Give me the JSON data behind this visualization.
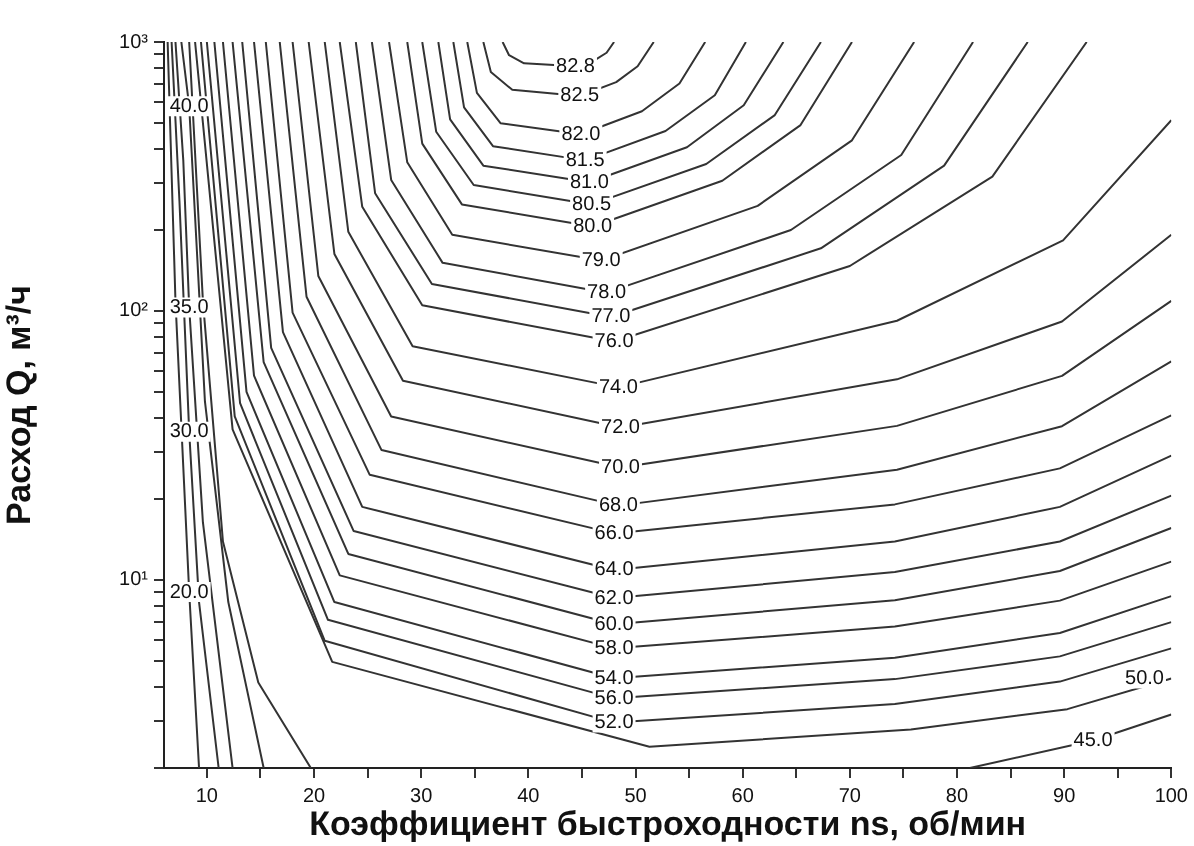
{
  "chart_data": {
    "type": "line",
    "xlabel": "Коэффициент быстроходности ns, об/мин",
    "ylabel": "Расход Q, м³/ч",
    "log": "y",
    "grid": false,
    "legend": false,
    "marker": "none",
    "line_style": "solid",
    "xlim": [
      6,
      100
    ],
    "ylim": [
      2,
      1000
    ],
    "xticks": [
      10,
      {
        "value": 15,
        "label": null
      },
      20,
      {
        "value": 25,
        "label": null
      },
      30,
      {
        "value": 35,
        "label": null
      },
      40,
      {
        "value": 45,
        "label": null
      },
      50,
      {
        "value": 55,
        "label": null
      },
      60,
      {
        "value": 65,
        "label": null
      },
      70,
      {
        "value": 75,
        "label": null
      },
      80,
      {
        "value": 85,
        "label": null
      },
      90,
      {
        "value": 95,
        "label": null
      },
      100
    ],
    "yticks": [
      {
        "value": 2,
        "label": null
      },
      {
        "value": 3,
        "label": null
      },
      {
        "value": 4,
        "label": null
      },
      {
        "value": 5,
        "label": null
      },
      {
        "value": 6,
        "label": null
      },
      {
        "value": 7,
        "label": null
      },
      {
        "value": 8,
        "label": null
      },
      {
        "value": 9,
        "label": null
      },
      {
        "value": 10,
        "label": "10¹"
      },
      {
        "value": 20,
        "label": null
      },
      {
        "value": 30,
        "label": null
      },
      {
        "value": 40,
        "label": null
      },
      {
        "value": 50,
        "label": null
      },
      {
        "value": 60,
        "label": null
      },
      {
        "value": 70,
        "label": null
      },
      {
        "value": 80,
        "label": null
      },
      {
        "value": 90,
        "label": null
      },
      {
        "value": 100,
        "label": "10²"
      },
      {
        "value": 200,
        "label": null
      },
      {
        "value": 300,
        "label": null
      },
      {
        "value": 400,
        "label": null
      },
      {
        "value": 500,
        "label": null
      },
      {
        "value": 600,
        "label": null
      },
      {
        "value": 700,
        "label": null
      },
      {
        "value": 800,
        "label": null
      },
      {
        "value": 900,
        "label": null
      },
      {
        "value": 1000,
        "label": "10³"
      }
    ],
    "series": [
      {
        "color": "#333333",
        "x": [
          37.6,
          38.2,
          39.6,
          44.4,
          46.2,
          47.3,
          48.0
        ],
        "values": [
          1000,
          893,
          833,
          813,
          857,
          912,
          1000
        ]
      },
      {
        "color": "#333333",
        "x": [
          35.8,
          36.5,
          38.5,
          44.8,
          48.2,
          50.2,
          51.7
        ],
        "values": [
          1000,
          774,
          664,
          630,
          709,
          813,
          1000
        ]
      },
      {
        "color": "#333333",
        "x": [
          34.3,
          35.2,
          37.4,
          44.9,
          50.6,
          54.1,
          56.5
        ],
        "values": [
          1000,
          647,
          499,
          454,
          553,
          701,
          1000
        ]
      },
      {
        "color": "#333333",
        "x": [
          33.0,
          34.0,
          36.7,
          45.3,
          52.8,
          57.4,
          60.3
        ],
        "values": [
          1000,
          571,
          410,
          363,
          467,
          634,
          1000
        ]
      },
      {
        "color": "#333333",
        "x": [
          31.6,
          32.7,
          35.8,
          45.7,
          54.8,
          60.1,
          63.8
        ],
        "values": [
          1000,
          516,
          347,
          301,
          406,
          582,
          1000
        ]
      },
      {
        "color": "#333333",
        "x": [
          30.1,
          31.4,
          34.9,
          45.9,
          56.6,
          63.0,
          67.3
        ],
        "values": [
          1000,
          464,
          294,
          249,
          352,
          535,
          1000
        ]
      },
      {
        "color": "#333333",
        "x": [
          28.7,
          30.1,
          33.8,
          46.0,
          58.1,
          65.4,
          70.2
        ],
        "values": [
          1000,
          419,
          249,
          206,
          305,
          491,
          1000
        ]
      },
      {
        "color": "#333333",
        "x": [
          27.0,
          28.7,
          32.9,
          46.8,
          61.4,
          70.2,
          76.0
        ],
        "values": [
          1000,
          357,
          192,
          154,
          246,
          431,
          1000
        ]
      },
      {
        "color": "#333333",
        "x": [
          25.4,
          27.2,
          32.0,
          47.3,
          64.5,
          74.8,
          81.5
        ],
        "values": [
          1000,
          307,
          151,
          117,
          200,
          380,
          1000
        ]
      },
      {
        "color": "#333333",
        "x": [
          23.9,
          25.7,
          31.0,
          47.7,
          67.3,
          78.8,
          86.6
        ],
        "values": [
          1000,
          274,
          126,
          95,
          171,
          347,
          1000
        ]
      },
      {
        "color": "#333333",
        "x": [
          22.4,
          24.5,
          30.1,
          48.0,
          70.0,
          83.3,
          92.1
        ],
        "values": [
          1000,
          244,
          105,
          77,
          147,
          316,
          1000
        ]
      },
      {
        "color": "#333333",
        "x": [
          21.0,
          23.2,
          29.2,
          48.4,
          74.4,
          89.9,
          100
        ],
        "values": [
          1000,
          197,
          74,
          52,
          92,
          183,
          512
        ]
      },
      {
        "color": "#333333",
        "x": [
          19.5,
          21.9,
          28.3,
          48.6,
          74.4,
          89.8,
          100
        ],
        "values": [
          1000,
          163,
          55,
          36.9,
          55.7,
          91.4,
          192
        ]
      },
      {
        "color": "#333333",
        "x": [
          18.0,
          20.4,
          27.2,
          48.6,
          74.4,
          89.8,
          100
        ],
        "values": [
          1000,
          135,
          40.5,
          26.2,
          37.4,
          57.4,
          109
        ]
      },
      {
        "color": "#333333",
        "x": [
          16.8,
          19.3,
          26.3,
          48.4,
          74.4,
          89.8,
          100
        ],
        "values": [
          1000,
          113,
          30.4,
          18.9,
          25.7,
          37.3,
          65
        ]
      },
      {
        "color": "#333333",
        "x": [
          15.5,
          18.0,
          25.2,
          48.0,
          74.2,
          89.6,
          100
        ],
        "values": [
          1000,
          98.6,
          24.6,
          14.9,
          19.1,
          26.0,
          40.9
        ]
      },
      {
        "color": "#333333",
        "x": [
          14.4,
          17.1,
          24.5,
          48.0,
          74.2,
          89.6,
          100
        ],
        "values": [
          1000,
          83.4,
          18.7,
          10.9,
          13.9,
          18.7,
          29.0
        ]
      },
      {
        "color": "#333333",
        "x": [
          13.3,
          16.0,
          23.7,
          48.0,
          74.2,
          89.6,
          100
        ],
        "values": [
          1000,
          72.9,
          15.2,
          8.57,
          10.7,
          13.9,
          20.6
        ]
      },
      {
        "color": "#333333",
        "x": [
          12.4,
          15.3,
          23.2,
          48.0,
          74.2,
          89.6,
          100
        ],
        "values": [
          1000,
          64.6,
          12.5,
          6.85,
          8.41,
          10.8,
          15.6
        ]
      },
      {
        "color": "#333333",
        "x": [
          11.5,
          14.4,
          22.4,
          48.0,
          74.2,
          89.6,
          100
        ],
        "values": [
          1000,
          57.5,
          10.4,
          5.57,
          6.71,
          8.38,
          11.7
        ]
      },
      {
        "color": "#333333",
        "x": [
          10.7,
          13.7,
          21.9,
          48.0,
          74.2,
          89.6,
          100
        ],
        "values": [
          1000,
          50.0,
          8.28,
          4.31,
          5.14,
          6.35,
          8.71
        ]
      },
      {
        "color": "#333333",
        "x": [
          10.0,
          13.1,
          21.3,
          48.0,
          74.2,
          89.6,
          100
        ],
        "values": [
          1000,
          45.4,
          7.11,
          3.63,
          4.28,
          5.2,
          6.97
        ]
      },
      {
        "color": "#333333",
        "x": [
          9.45,
          12.6,
          21.0,
          48.0,
          74.2,
          89.6,
          100
        ],
        "values": [
          1000,
          40.6,
          5.94,
          2.95,
          3.46,
          4.19,
          5.57
        ]
      },
      {
        "color": "#333333",
        "x": [
          8.9,
          12.4,
          21.7,
          51.3,
          75.7,
          90.3,
          100
        ],
        "values": [
          1000,
          36.3,
          4.96,
          2.4,
          2.78,
          3.31,
          4.3
        ]
      },
      {
        "color": "#333333",
        "x": [
          8.35,
          9.63,
          11.5,
          14.8,
          19.7,
          50,
          81.2,
          92.7,
          100
        ],
        "values": [
          1000,
          109,
          13.9,
          4.16,
          2.0,
          null,
          2.0,
          2.53,
          3.16
        ]
      },
      {
        "color": "#333333",
        "x": [
          7.62,
          8.35,
          9.82,
          12.0,
          15.3
        ],
        "values": [
          1000,
          577,
          46.1,
          8.28,
          2.0
        ]
      },
      {
        "color": "#333333",
        "x": [
          7.07,
          7.8,
          8.35,
          9.63,
          12.4
        ],
        "values": [
          1000,
          363,
          103,
          16.4,
          2.0
        ]
      },
      {
        "color": "#333333",
        "x": [
          6.71,
          7.44,
          8.35,
          9.27,
          11.1
        ],
        "values": [
          1000,
          257,
          35.6,
          8.28,
          2.0
        ]
      },
      {
        "color": "#333333",
        "x": [
          6.34,
          7.07,
          8.35,
          9.27
        ],
        "values": [
          1000,
          109,
          9.02,
          2.0
        ]
      }
    ],
    "annotations": [
      {
        "text": "82.8",
        "x": 44.4,
        "y": 813
      },
      {
        "text": "82.5",
        "x": 44.8,
        "y": 630
      },
      {
        "text": "82.0",
        "x": 44.9,
        "y": 454
      },
      {
        "text": "81.5",
        "x": 45.3,
        "y": 363
      },
      {
        "text": "81.0",
        "x": 45.7,
        "y": 301
      },
      {
        "text": "80.5",
        "x": 45.9,
        "y": 249
      },
      {
        "text": "80.0",
        "x": 46.0,
        "y": 206
      },
      {
        "text": "79.0",
        "x": 46.8,
        "y": 154
      },
      {
        "text": "78.0",
        "x": 47.3,
        "y": 117
      },
      {
        "text": "77.0",
        "x": 47.7,
        "y": 95
      },
      {
        "text": "76.0",
        "x": 48.0,
        "y": 77
      },
      {
        "text": "74.0",
        "x": 48.4,
        "y": 52
      },
      {
        "text": "72.0",
        "x": 48.6,
        "y": 36.9
      },
      {
        "text": "70.0",
        "x": 48.6,
        "y": 26.2
      },
      {
        "text": "68.0",
        "x": 48.4,
        "y": 18.9
      },
      {
        "text": "66.0",
        "x": 48.0,
        "y": 14.9
      },
      {
        "text": "64.0",
        "x": 48.0,
        "y": 10.9
      },
      {
        "text": "62.0",
        "x": 48.0,
        "y": 8.57
      },
      {
        "text": "60.0",
        "x": 48.0,
        "y": 6.85
      },
      {
        "text": "58.0",
        "x": 48.0,
        "y": 5.57
      },
      {
        "text": "54.0",
        "x": 48.0,
        "y": 4.31
      },
      {
        "text": "56.0",
        "x": 48.0,
        "y": 3.63
      },
      {
        "text": "52.0",
        "x": 48.0,
        "y": 2.95
      },
      {
        "text": "50.0",
        "x": 97.5,
        "y": 4.3
      },
      {
        "text": "45.0",
        "x": 92.7,
        "y": 2.53
      },
      {
        "text": "40.0",
        "x": 8.35,
        "y": 577
      },
      {
        "text": "35.0",
        "x": 8.35,
        "y": 103
      },
      {
        "text": "30.0",
        "x": 8.35,
        "y": 35.6
      },
      {
        "text": "20.0",
        "x": 8.35,
        "y": 9.02
      }
    ]
  }
}
